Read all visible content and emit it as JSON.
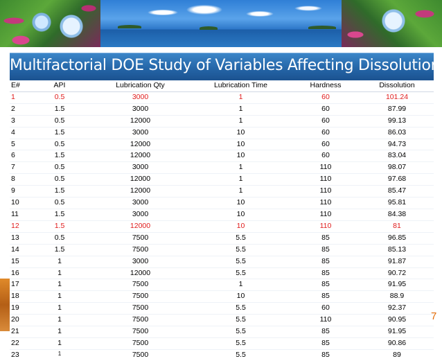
{
  "title": "Multifactorial DOE Study of Variables Affecting Dissolution",
  "slide_number": "7",
  "colors": {
    "title_bar": "#2566a8",
    "highlight": "#e01b1b",
    "slide_number": "#e36c09"
  },
  "table": {
    "headers": [
      "E#",
      "API",
      "Lubrication Qty",
      "Lubrication Time",
      "Hardness",
      "Dissolution"
    ],
    "rows": [
      [
        "1",
        "0.5",
        "3000",
        "1",
        "60",
        "101.24"
      ],
      [
        "2",
        "1.5",
        "3000",
        "1",
        "60",
        "87.99"
      ],
      [
        "3",
        "0.5",
        "12000",
        "1",
        "60",
        "99.13"
      ],
      [
        "4",
        "1.5",
        "3000",
        "10",
        "60",
        "86.03"
      ],
      [
        "5",
        "0.5",
        "12000",
        "10",
        "60",
        "94.73"
      ],
      [
        "6",
        "1.5",
        "12000",
        "10",
        "60",
        "83.04"
      ],
      [
        "7",
        "0.5",
        "3000",
        "1",
        "110",
        "98.07"
      ],
      [
        "8",
        "0.5",
        "12000",
        "1",
        "110",
        "97.68"
      ],
      [
        "9",
        "1.5",
        "12000",
        "1",
        "110",
        "85.47"
      ],
      [
        "10",
        "0.5",
        "3000",
        "10",
        "110",
        "95.81"
      ],
      [
        "11",
        "1.5",
        "3000",
        "10",
        "110",
        "84.38"
      ],
      [
        "12",
        "1.5",
        "12000",
        "10",
        "110",
        "81"
      ],
      [
        "13",
        "0.5",
        "7500",
        "5.5",
        "85",
        "96.85"
      ],
      [
        "14",
        "1.5",
        "7500",
        "5.5",
        "85",
        "85.13"
      ],
      [
        "15",
        "1",
        "3000",
        "5.5",
        "85",
        "91.87"
      ],
      [
        "16",
        "1",
        "12000",
        "5.5",
        "85",
        "90.72"
      ],
      [
        "17",
        "1",
        "7500",
        "1",
        "85",
        "91.95"
      ],
      [
        "18",
        "1",
        "7500",
        "10",
        "85",
        "88.9"
      ],
      [
        "19",
        "1",
        "7500",
        "5.5",
        "60",
        "92.37"
      ],
      [
        "20",
        "1",
        "7500",
        "5.5",
        "110",
        "90.95"
      ],
      [
        "21",
        "1",
        "7500",
        "5.5",
        "85",
        "91.95"
      ],
      [
        "22",
        "1",
        "7500",
        "5.5",
        "85",
        "90.86"
      ],
      [
        "23",
        "1",
        "7500",
        "5.5",
        "85",
        "89"
      ]
    ],
    "highlighted_rows": [
      1,
      12
    ],
    "small_api_rows": [
      23
    ]
  }
}
